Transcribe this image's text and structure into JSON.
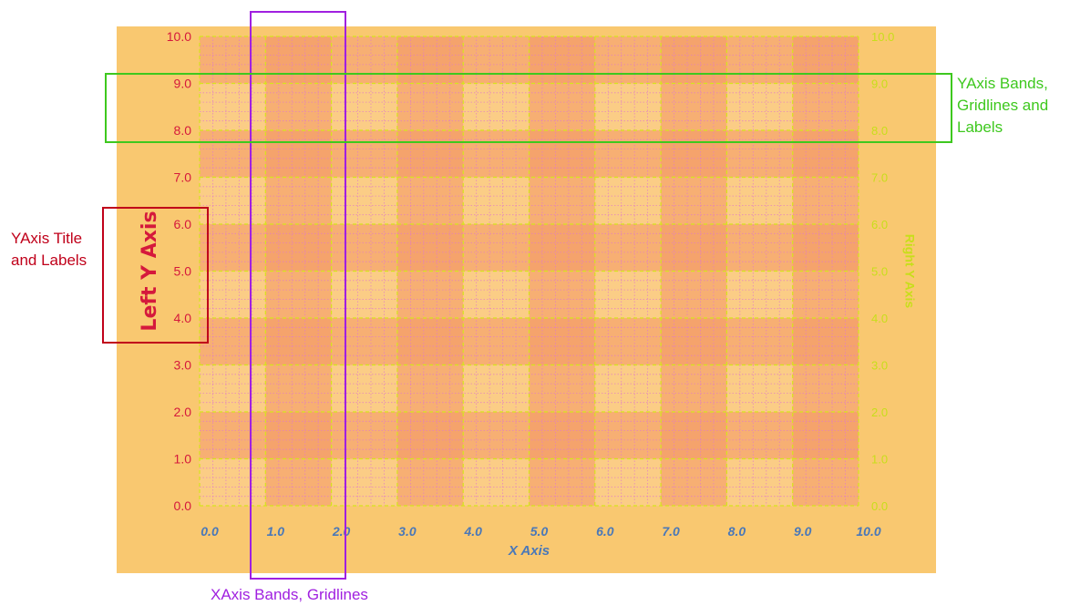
{
  "annotations": {
    "yaxis_title_labels": {
      "label": "YAxis Title and Labels",
      "color": "#c0001a"
    },
    "xaxis_bands": {
      "label": "XAxis Bands, Gridlines",
      "color": "#a020e0"
    },
    "yaxis_bands": {
      "label": "YAxis Bands, Gridlines and Labels",
      "color": "#3ec81e"
    }
  },
  "chart_data": {
    "type": "line",
    "title": "",
    "xlabel": "X Axis",
    "ylabel": "Left Y Axis",
    "ylabel_right": "Right Y Axis",
    "xlim": [
      0,
      10
    ],
    "ylim": [
      0,
      10
    ],
    "x_ticks": [
      0,
      1,
      2,
      3,
      4,
      5,
      6,
      7,
      8,
      9,
      10
    ],
    "y_ticks": [
      0,
      1,
      2,
      3,
      4,
      5,
      6,
      7,
      8,
      9,
      10
    ],
    "x_tick_labels": [
      "0.0",
      "1.0",
      "2.0",
      "3.0",
      "4.0",
      "5.0",
      "6.0",
      "7.0",
      "8.0",
      "9.0",
      "10.0"
    ],
    "y_tick_labels": [
      "0.0",
      "1.0",
      "2.0",
      "3.0",
      "4.0",
      "5.0",
      "6.0",
      "7.0",
      "8.0",
      "9.0",
      "10.0"
    ],
    "y_tick_labels_right": [
      "0.0",
      "1.0",
      "2.0",
      "3.0",
      "4.0",
      "5.0",
      "6.0",
      "7.0",
      "8.0",
      "9.0",
      "10.0"
    ],
    "x_bands": [
      [
        1,
        2
      ],
      [
        3,
        4
      ],
      [
        5,
        6
      ],
      [
        7,
        8
      ],
      [
        9,
        10
      ]
    ],
    "y_bands": [
      [
        1,
        2
      ],
      [
        3,
        4
      ],
      [
        5,
        6
      ],
      [
        7,
        8
      ],
      [
        9,
        10
      ]
    ],
    "grid": true,
    "minor_grid": true,
    "series": [],
    "colors": {
      "background": "#f9c870",
      "plot_area": "#fbcd86",
      "band": "#f39d68",
      "left_axis": "#d5193c",
      "right_axis": "#c8de1a",
      "x_axis": "#4a78b8",
      "major_grid": "#d6e41c",
      "minor_grid": "#e07ac8"
    }
  }
}
